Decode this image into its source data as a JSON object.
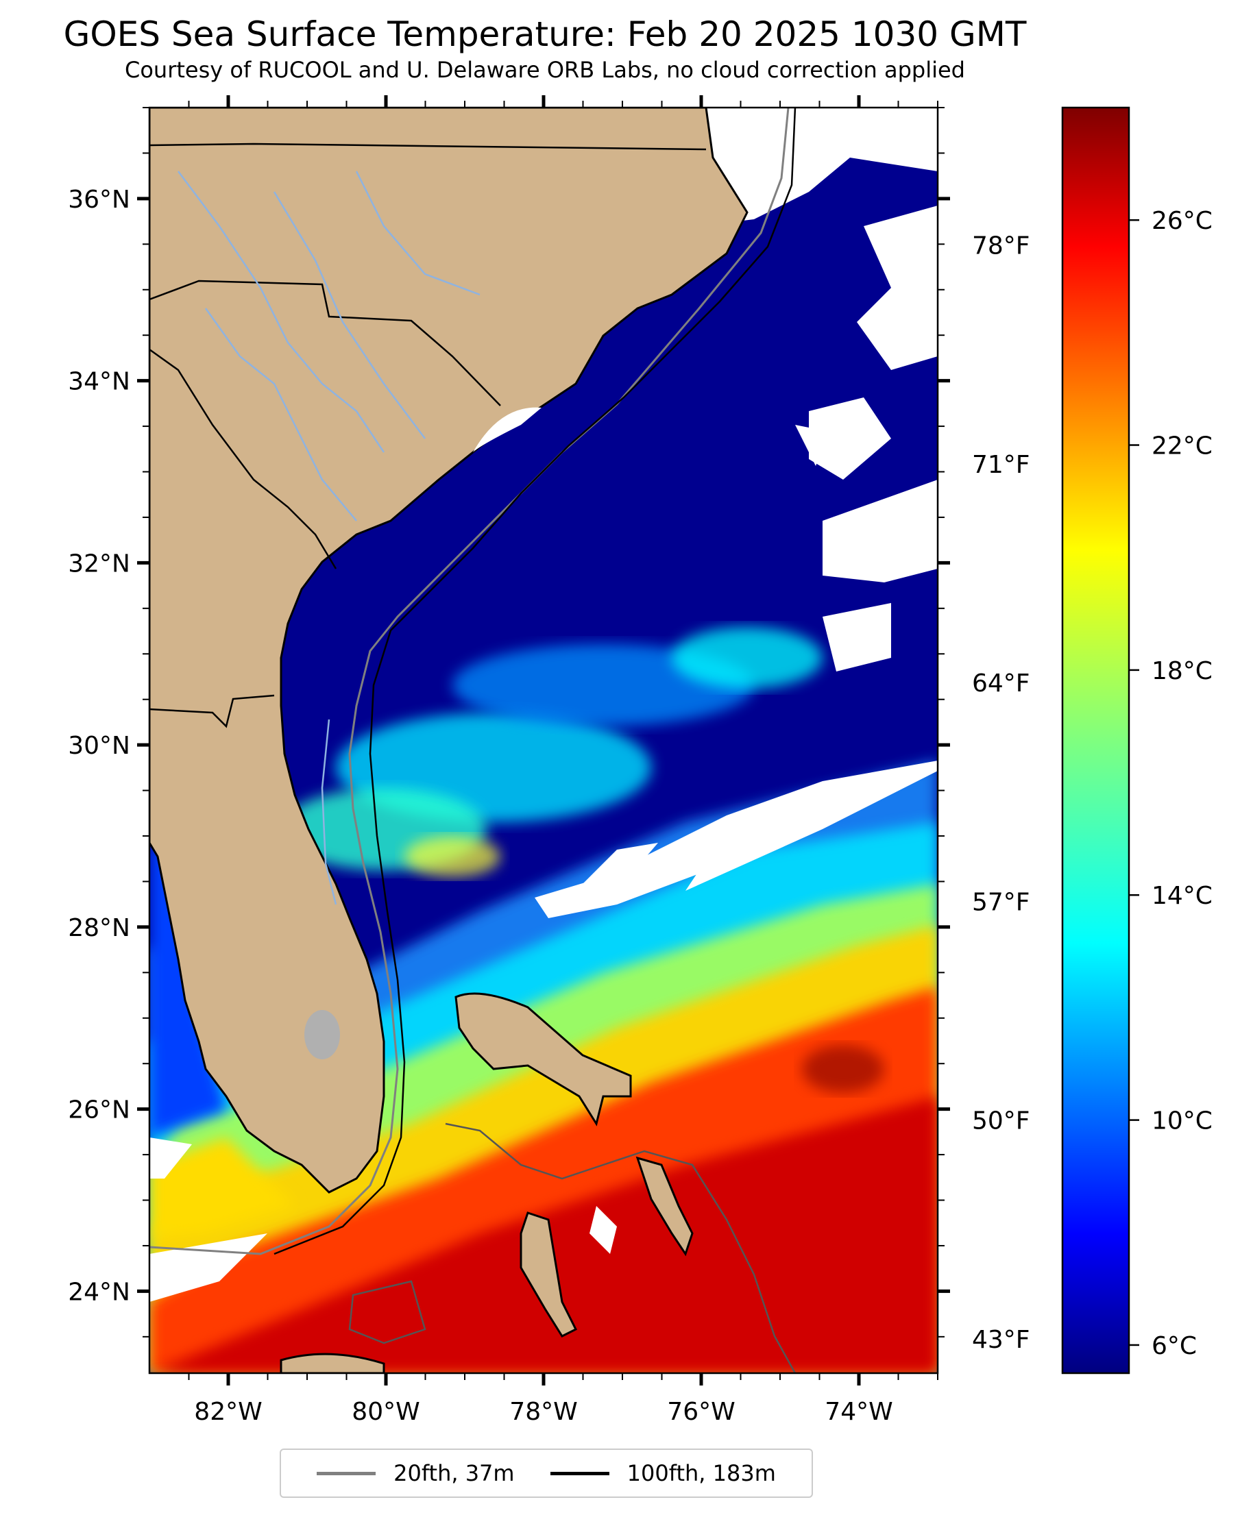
{
  "title": "GOES Sea Surface Temperature: Feb 20 2025 1030 GMT",
  "subtitle": "Courtesy of RUCOOL and U. Delaware ORB Labs, no cloud correction applied",
  "map": {
    "lon_range": [
      -83,
      -73
    ],
    "lat_range": [
      23.1,
      37
    ],
    "lat_ticks": [
      {
        "value": 36,
        "label": "36°N"
      },
      {
        "value": 34,
        "label": "34°N"
      },
      {
        "value": 32,
        "label": "32°N"
      },
      {
        "value": 30,
        "label": "30°N"
      },
      {
        "value": 28,
        "label": "28°N"
      },
      {
        "value": 26,
        "label": "26°N"
      },
      {
        "value": 24,
        "label": "24°N"
      }
    ],
    "lon_ticks": [
      {
        "value": -82,
        "label": "82°W"
      },
      {
        "value": -80,
        "label": "80°W"
      },
      {
        "value": -78,
        "label": "78°W"
      },
      {
        "value": -76,
        "label": "76°W"
      },
      {
        "value": -74,
        "label": "74°W"
      }
    ],
    "fahrenheit_ticks": [
      {
        "value": 78,
        "label": "78°F"
      },
      {
        "value": 71,
        "label": "71°F"
      },
      {
        "value": 64,
        "label": "64°F"
      },
      {
        "value": 57,
        "label": "57°F"
      },
      {
        "value": 50,
        "label": "50°F"
      },
      {
        "value": 43,
        "label": "43°F"
      }
    ],
    "land_color": "#d2b48c",
    "cloud_color": "#ffffff",
    "river_color": "#8fb3e0"
  },
  "colorbar": {
    "colormap": "jet",
    "range_c": [
      5.5,
      28
    ],
    "ticks": [
      {
        "value": 26,
        "label": "26°C"
      },
      {
        "value": 22,
        "label": "22°C"
      },
      {
        "value": 18,
        "label": "18°C"
      },
      {
        "value": 14,
        "label": "14°C"
      },
      {
        "value": 10,
        "label": "10°C"
      },
      {
        "value": 6,
        "label": "6°C"
      }
    ]
  },
  "legend": {
    "items": [
      {
        "label": "20fth, 37m",
        "color": "#808080"
      },
      {
        "label": "100fth, 183m",
        "color": "#000000"
      }
    ]
  }
}
